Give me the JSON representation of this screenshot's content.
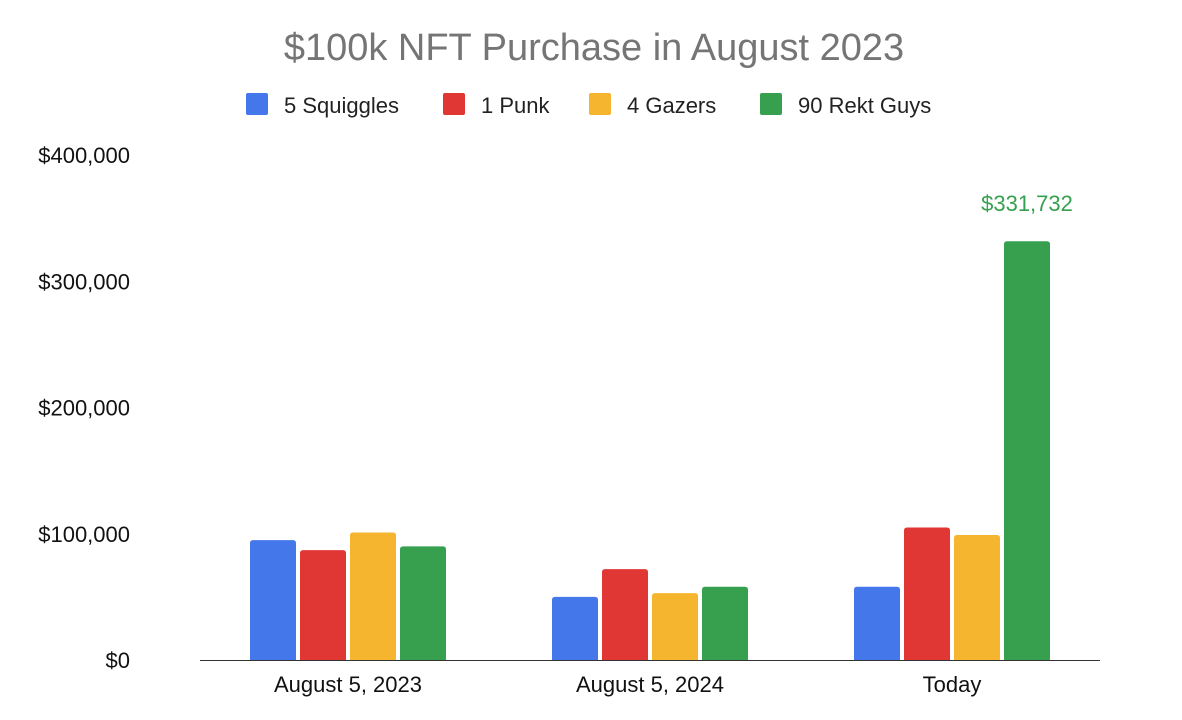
{
  "chart_data": {
    "type": "bar",
    "title": "$100k NFT Purchase in August 2023",
    "xlabel": "",
    "ylabel": "",
    "categories": [
      "August 5, 2023",
      "August 5, 2024",
      "Today"
    ],
    "series": [
      {
        "name": "5 Squiggles",
        "color": "#4377ea",
        "values": [
          95000,
          50000,
          58000
        ]
      },
      {
        "name": "1 Punk",
        "color": "#e03734",
        "values": [
          87000,
          72000,
          105000
        ]
      },
      {
        "name": "4 Gazers",
        "color": "#f6b52e",
        "values": [
          101000,
          53000,
          99000
        ]
      },
      {
        "name": "90 Rekt Guys",
        "color": "#36a04f",
        "values": [
          90000,
          58000,
          331732
        ]
      }
    ],
    "ylim": [
      0,
      400000
    ],
    "yticks": [
      0,
      100000,
      200000,
      300000,
      400000
    ],
    "ytick_labels": [
      "$0",
      "$100,000",
      "$200,000",
      "$300,000",
      "$400,000"
    ],
    "data_labels": [
      {
        "series": "90 Rekt Guys",
        "category": "Today",
        "text": "$331,732",
        "color": "#36a04f"
      }
    ],
    "grid": false,
    "legend_position": "top-center"
  }
}
